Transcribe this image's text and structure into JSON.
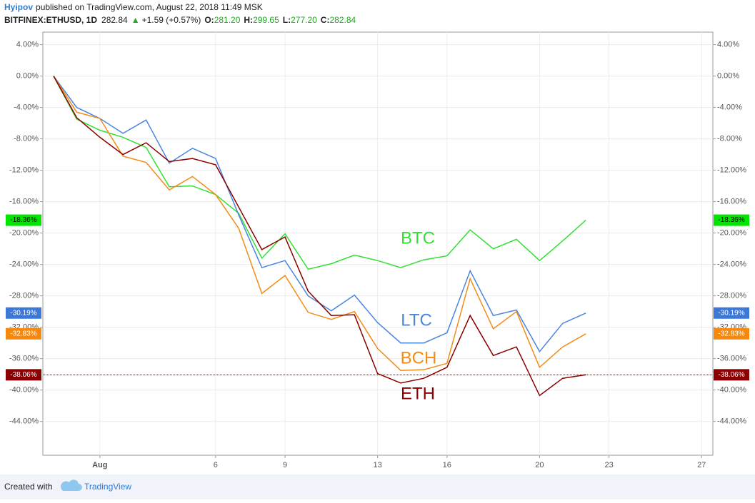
{
  "header": {
    "author": "Hyipov",
    "published": "published on TradingView.com, August 22, 2018 11:49 MSK",
    "symbol": "BITFINEX:ETHUSD, 1D",
    "last": "282.84",
    "change": "+1.59 (+0.57%)",
    "open_label": "O:",
    "open": "281.20",
    "high_label": "H:",
    "high": "299.65",
    "low_label": "L:",
    "low": "277.20",
    "close_label": "C:",
    "close": "282.84"
  },
  "chart_data": {
    "type": "line",
    "categories": [
      null,
      null,
      "Aug",
      null,
      null,
      null,
      null,
      "6",
      null,
      null,
      "9",
      null,
      null,
      null,
      "13",
      null,
      null,
      "16",
      null,
      null,
      null,
      "20",
      null,
      null,
      "23",
      null,
      null,
      null,
      "27"
    ],
    "series": [
      {
        "name": "BTC",
        "color": "#33e033",
        "badge_color": "#00e600",
        "last_label": "-18.36%",
        "values": [
          0,
          -5.5,
          -6.9,
          -7.8,
          -9.1,
          -14.1,
          -14.0,
          -15.1,
          -17.5,
          -23.2,
          -20.1,
          -24.6,
          -23.9,
          -22.8,
          -23.5,
          -24.4,
          -23.4,
          -22.9,
          -19.6,
          -22.0,
          -20.8,
          -23.5,
          -21.0,
          -18.36,
          null,
          null,
          null,
          null,
          null
        ]
      },
      {
        "name": "LTC",
        "color": "#4a86e0",
        "badge_color": "#3c78d8",
        "last_label": "-30.19%",
        "values": [
          0,
          -4.0,
          -5.4,
          -7.3,
          -5.6,
          -11.1,
          -9.2,
          -10.5,
          -17.7,
          -24.4,
          -23.5,
          -28.0,
          -29.9,
          -27.9,
          -31.4,
          -34.0,
          -34.0,
          -32.7,
          -24.8,
          -30.5,
          -29.8,
          -35.1,
          -31.5,
          -30.19,
          null,
          null,
          null,
          null,
          null
        ]
      },
      {
        "name": "BCH",
        "color": "#f28c16",
        "badge_color": "#f5890f",
        "last_label": "-32.83%",
        "values": [
          0,
          -4.6,
          -5.4,
          -10.2,
          -11.0,
          -14.5,
          -12.8,
          -15.1,
          -19.4,
          -27.7,
          -25.4,
          -30.1,
          -31.0,
          -30.0,
          -34.7,
          -37.5,
          -37.4,
          -36.6,
          -25.8,
          -32.2,
          -30.0,
          -37.1,
          -34.5,
          -32.83,
          null,
          null,
          null,
          null,
          null
        ]
      },
      {
        "name": "ETH",
        "color": "#8b0000",
        "badge_color": "#8a0000",
        "last_label": "-38.06%",
        "values": [
          0,
          -5.3,
          -7.8,
          -10.0,
          -8.5,
          -10.9,
          -10.5,
          -11.3,
          -16.7,
          -22.1,
          -20.5,
          -27.4,
          -30.5,
          -30.4,
          -37.9,
          -39.1,
          -38.5,
          -37.1,
          -30.5,
          -35.6,
          -34.5,
          -40.7,
          -38.5,
          -38.06,
          null,
          null,
          null,
          null,
          null
        ]
      }
    ],
    "ylim": [
      -48.3,
      5.6
    ],
    "yticks": [
      {
        "value": 4,
        "label": "4.00%"
      },
      {
        "value": 0,
        "label": "0.00%"
      },
      {
        "value": -4,
        "label": "-4.00%"
      },
      {
        "value": -8,
        "label": "-8.00%"
      },
      {
        "value": -12,
        "label": "-12.00%"
      },
      {
        "value": -16,
        "label": "-16.00%"
      },
      {
        "value": -20,
        "label": "-20.00%"
      },
      {
        "value": -24,
        "label": "-24.00%"
      },
      {
        "value": -28,
        "label": "-28.00%"
      },
      {
        "value": -32,
        "label": "-32.00%"
      },
      {
        "value": -36,
        "label": "-36.00%"
      },
      {
        "value": -40,
        "label": "-40.00%"
      },
      {
        "value": -44,
        "label": "-44.00%"
      }
    ],
    "grid": true
  },
  "footer": {
    "created": "Created with",
    "brand": "TradingView"
  }
}
